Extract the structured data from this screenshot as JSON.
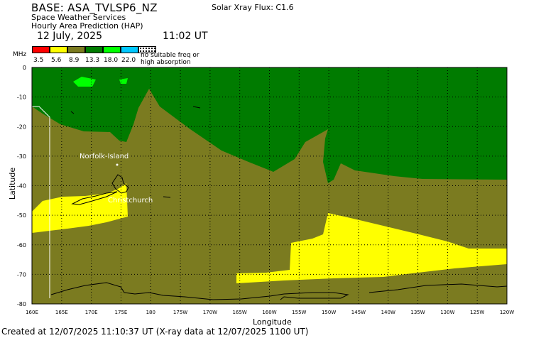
{
  "header": {
    "base": "BASE: ASA_TVLSP6_NZ",
    "solar_flux": "Solar Xray Flux: C1.6",
    "service": "Space Weather Services",
    "product": "Hourly Area Prediction (HAP)",
    "date": "12 July, 2025",
    "time": "11:02 UT"
  },
  "legend": {
    "unit": "MHz",
    "levels": [
      "3.5",
      "5.6",
      "8.9",
      "13.3",
      "18.0",
      "22.0"
    ],
    "colors": [
      "#ff0000",
      "#ffff00",
      "#7b7b20",
      "#007b00",
      "#00ff00",
      "#00c8ff",
      "#000000"
    ],
    "no_suitable": "no suitable freq or\nhigh absorption"
  },
  "map": {
    "ylabel": "Latitude",
    "xlabel": "Longitude",
    "y_ticks": [
      "0",
      "-10",
      "-20",
      "-30",
      "-40",
      "-50",
      "-60",
      "-70",
      "-80"
    ],
    "x_ticks": [
      "160E",
      "165E",
      "170E",
      "175E",
      "180",
      "175W",
      "170W",
      "165W",
      "160W",
      "155W",
      "150W",
      "145W",
      "140W",
      "135W",
      "130W",
      "125W",
      "120W"
    ],
    "labels": {
      "norfolk": "Norfolk-Island",
      "christchurch": "Christchurch"
    },
    "colors": {
      "olive": "#7b7b20",
      "dark_green": "#007b00",
      "bright_green": "#00ff00",
      "yellow": "#ffff00"
    }
  },
  "footer": "Created at 12/07/2025 11:10:37 UT (X-ray data at 12/07/2025 1100 UT)"
}
